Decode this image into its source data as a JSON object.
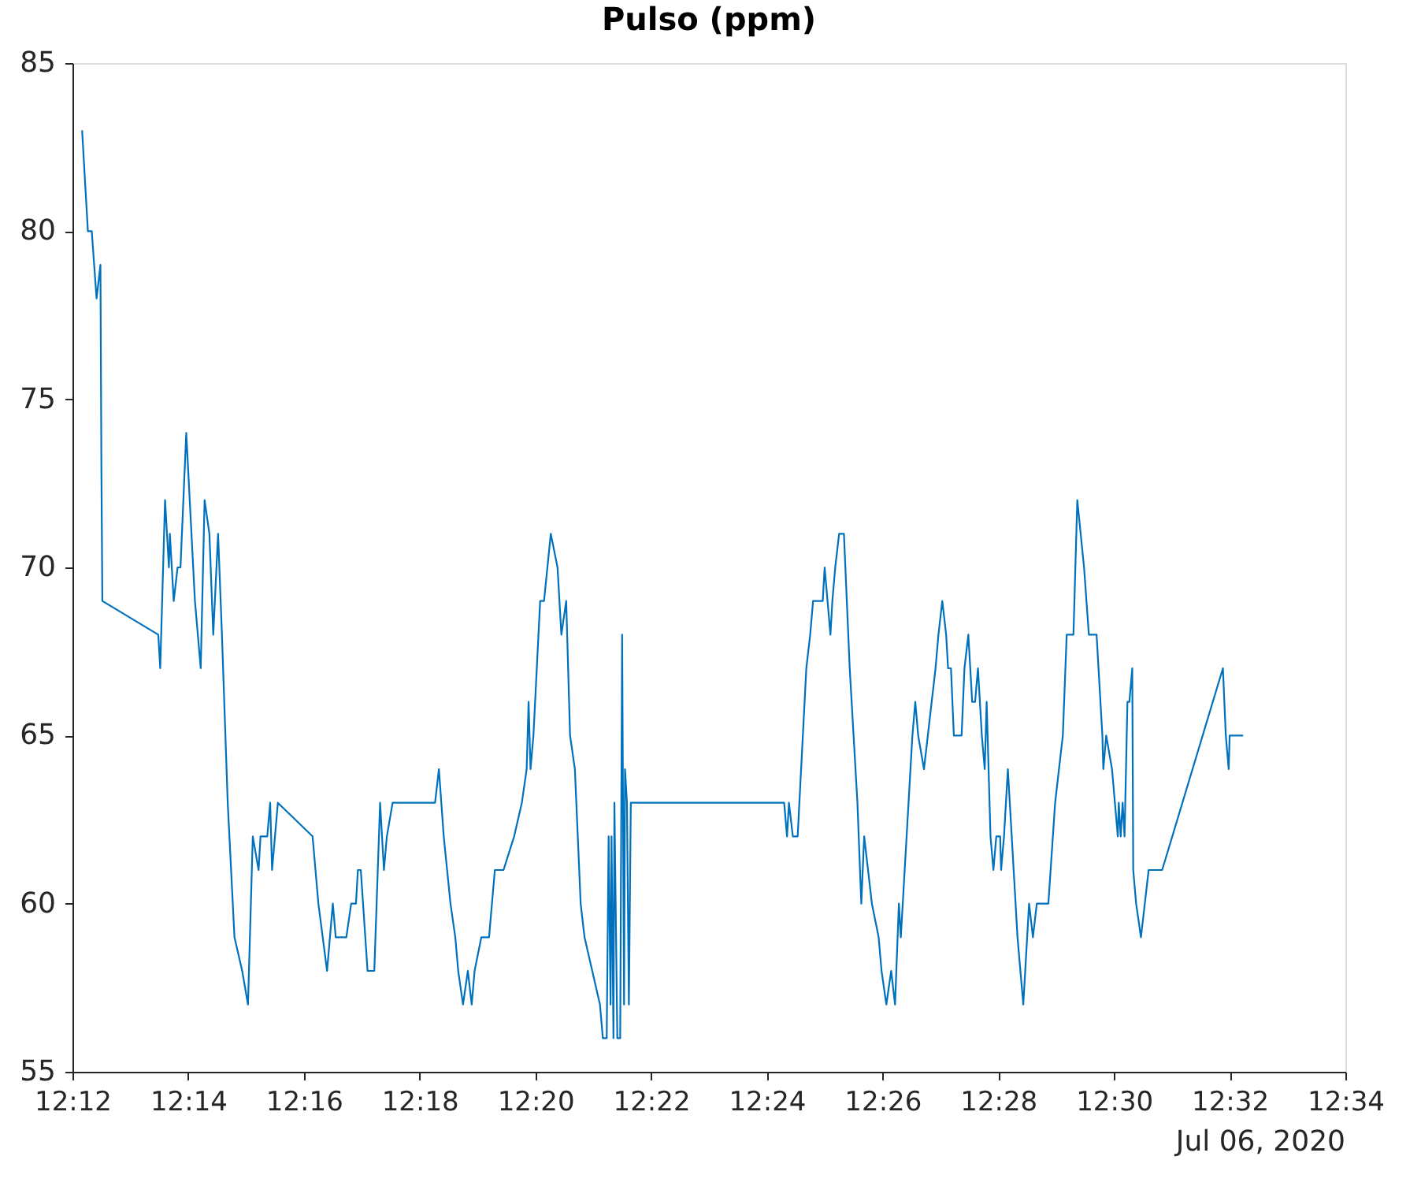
{
  "chart_data": {
    "type": "line",
    "title": "Pulso (ppm)",
    "annotations": [
      "Jul 06, 2020"
    ],
    "xlim": [
      "2020-07-06T12:12",
      "2020-07-06T12:34"
    ],
    "xticks": [
      {
        "value": "2020-07-06T12:12",
        "label": "12:12"
      },
      {
        "value": "2020-07-06T12:14",
        "label": "12:14"
      },
      {
        "value": "2020-07-06T12:16",
        "label": "12:16"
      },
      {
        "value": "2020-07-06T12:18",
        "label": "12:18"
      },
      {
        "value": "2020-07-06T12:20",
        "label": "12:20"
      },
      {
        "value": "2020-07-06T12:22",
        "label": "12:22"
      },
      {
        "value": "2020-07-06T12:24",
        "label": "12:24"
      },
      {
        "value": "2020-07-06T12:26",
        "label": "12:26"
      },
      {
        "value": "2020-07-06T12:28",
        "label": "12:28"
      },
      {
        "value": "2020-07-06T12:30",
        "label": "12:30"
      },
      {
        "value": "2020-07-06T12:32",
        "label": "12:32"
      },
      {
        "value": "2020-07-06T12:34",
        "label": "12:34"
      }
    ],
    "ylim": [
      55,
      85
    ],
    "yticks": [
      55,
      60,
      65,
      70,
      75,
      80,
      85
    ],
    "grid": false,
    "marker": "none",
    "line_style": "solid",
    "series": [
      {
        "color": "#0072bd",
        "x": [
          "2020-07-06T12:12:10",
          "2020-07-06T12:12:16",
          "2020-07-06T12:12:20",
          "2020-07-06T12:12:25",
          "2020-07-06T12:12:29",
          "2020-07-06T12:12:30",
          "2020-07-06T12:12:31",
          "2020-07-06T12:13:29",
          "2020-07-06T12:13:31",
          "2020-07-06T12:13:36",
          "2020-07-06T12:13:40",
          "2020-07-06T12:13:41",
          "2020-07-06T12:13:45",
          "2020-07-06T12:13:49",
          "2020-07-06T12:13:52",
          "2020-07-06T12:13:58",
          "2020-07-06T12:14:07",
          "2020-07-06T12:14:10",
          "2020-07-06T12:14:13",
          "2020-07-06T12:14:17",
          "2020-07-06T12:14:22",
          "2020-07-06T12:14:26",
          "2020-07-06T12:14:31",
          "2020-07-06T12:14:35",
          "2020-07-06T12:14:41",
          "2020-07-06T12:14:48",
          "2020-07-06T12:14:56",
          "2020-07-06T12:15:02",
          "2020-07-06T12:15:07",
          "2020-07-06T12:15:13",
          "2020-07-06T12:15:15",
          "2020-07-06T12:15:22",
          "2020-07-06T12:15:25",
          "2020-07-06T12:15:27",
          "2020-07-06T12:15:33",
          "2020-07-06T12:16:09",
          "2020-07-06T12:16:15",
          "2020-07-06T12:16:24",
          "2020-07-06T12:16:30",
          "2020-07-06T12:16:33",
          "2020-07-06T12:16:44",
          "2020-07-06T12:16:49",
          "2020-07-06T12:16:54",
          "2020-07-06T12:16:56",
          "2020-07-06T12:16:59",
          "2020-07-06T12:17:06",
          "2020-07-06T12:17:13",
          "2020-07-06T12:17:19",
          "2020-07-06T12:17:23",
          "2020-07-06T12:17:26",
          "2020-07-06T12:17:32",
          "2020-07-06T12:18:16",
          "2020-07-06T12:18:20",
          "2020-07-06T12:18:25",
          "2020-07-06T12:18:32",
          "2020-07-06T12:18:37",
          "2020-07-06T12:18:40",
          "2020-07-06T12:18:45",
          "2020-07-06T12:18:50",
          "2020-07-06T12:18:54",
          "2020-07-06T12:18:57",
          "2020-07-06T12:19:04",
          "2020-07-06T12:19:12",
          "2020-07-06T12:19:18",
          "2020-07-06T12:19:27",
          "2020-07-06T12:19:38",
          "2020-07-06T12:19:46",
          "2020-07-06T12:19:51",
          "2020-07-06T12:19:53",
          "2020-07-06T12:19:55",
          "2020-07-06T12:19:58",
          "2020-07-06T12:20:05",
          "2020-07-06T12:20:09",
          "2020-07-06T12:20:16",
          "2020-07-06T12:20:23",
          "2020-07-06T12:20:27",
          "2020-07-06T12:20:32",
          "2020-07-06T12:20:36",
          "2020-07-06T12:20:41",
          "2020-07-06T12:20:47",
          "2020-07-06T12:20:51",
          "2020-07-06T12:21:07",
          "2020-07-06T12:21:10",
          "2020-07-06T12:21:14",
          "2020-07-06T12:21:16",
          "2020-07-06T12:21:18",
          "2020-07-06T12:21:19",
          "2020-07-06T12:21:21",
          "2020-07-06T12:21:22",
          "2020-07-06T12:21:25",
          "2020-07-06T12:21:28",
          "2020-07-06T12:21:30",
          "2020-07-06T12:21:32",
          "2020-07-06T12:21:33",
          "2020-07-06T12:21:35",
          "2020-07-06T12:21:37",
          "2020-07-06T12:21:39",
          "2020-07-06T12:24:18",
          "2020-07-06T12:24:21",
          "2020-07-06T12:24:23",
          "2020-07-06T12:24:27",
          "2020-07-06T12:24:32",
          "2020-07-06T12:24:41",
          "2020-07-06T12:24:45",
          "2020-07-06T12:24:48",
          "2020-07-06T12:24:58",
          "2020-07-06T12:25:00",
          "2020-07-06T12:25:03",
          "2020-07-06T12:25:06",
          "2020-07-06T12:25:08",
          "2020-07-06T12:25:11",
          "2020-07-06T12:25:15",
          "2020-07-06T12:25:20",
          "2020-07-06T12:25:26",
          "2020-07-06T12:25:34",
          "2020-07-06T12:25:38",
          "2020-07-06T12:25:41",
          "2020-07-06T12:25:45",
          "2020-07-06T12:25:49",
          "2020-07-06T12:25:56",
          "2020-07-06T12:25:59",
          "2020-07-06T12:26:04",
          "2020-07-06T12:26:09",
          "2020-07-06T12:26:13",
          "2020-07-06T12:26:17",
          "2020-07-06T12:26:19",
          "2020-07-06T12:26:23",
          "2020-07-06T12:26:27",
          "2020-07-06T12:26:31",
          "2020-07-06T12:26:34",
          "2020-07-06T12:26:37",
          "2020-07-06T12:26:43",
          "2020-07-06T12:26:51",
          "2020-07-06T12:26:55",
          "2020-07-06T12:26:58",
          "2020-07-06T12:27:02",
          "2020-07-06T12:27:06",
          "2020-07-06T12:27:08",
          "2020-07-06T12:27:11",
          "2020-07-06T12:27:14",
          "2020-07-06T12:27:22",
          "2020-07-06T12:27:25",
          "2020-07-06T12:27:29",
          "2020-07-06T12:27:33",
          "2020-07-06T12:27:36",
          "2020-07-06T12:27:39",
          "2020-07-06T12:27:43",
          "2020-07-06T12:27:46",
          "2020-07-06T12:27:48",
          "2020-07-06T12:27:52",
          "2020-07-06T12:27:55",
          "2020-07-06T12:27:58",
          "2020-07-06T12:28:02",
          "2020-07-06T12:28:03",
          "2020-07-06T12:28:06",
          "2020-07-06T12:28:10",
          "2020-07-06T12:28:14",
          "2020-07-06T12:28:20",
          "2020-07-06T12:28:26",
          "2020-07-06T12:28:32",
          "2020-07-06T12:28:36",
          "2020-07-06T12:28:40",
          "2020-07-06T12:28:52",
          "2020-07-06T12:28:59",
          "2020-07-06T12:29:07",
          "2020-07-06T12:29:11",
          "2020-07-06T12:29:18",
          "2020-07-06T12:29:22",
          "2020-07-06T12:29:29",
          "2020-07-06T12:29:34",
          "2020-07-06T12:29:42",
          "2020-07-06T12:29:48",
          "2020-07-06T12:29:49",
          "2020-07-06T12:29:52",
          "2020-07-06T12:29:58",
          "2020-07-06T12:30:04",
          "2020-07-06T12:30:05",
          "2020-07-06T12:30:07",
          "2020-07-06T12:30:09",
          "2020-07-06T12:30:11",
          "2020-07-06T12:30:14",
          "2020-07-06T12:30:16",
          "2020-07-06T12:30:19",
          "2020-07-06T12:30:20",
          "2020-07-06T12:30:23",
          "2020-07-06T12:30:28",
          "2020-07-06T12:30:36",
          "2020-07-06T12:30:50",
          "2020-07-06T12:31:53",
          "2020-07-06T12:31:56",
          "2020-07-06T12:31:59",
          "2020-07-06T12:32:00",
          "2020-07-06T12:32:14"
        ],
        "values": [
          83,
          80,
          80,
          78,
          79,
          73,
          69,
          68,
          67,
          72,
          70,
          71,
          69,
          70,
          70,
          74,
          69,
          68,
          67,
          72,
          71,
          68,
          71,
          68,
          63,
          59,
          58,
          57,
          62,
          61,
          62,
          62,
          63,
          61,
          63,
          62,
          60,
          58,
          60,
          59,
          59,
          60,
          60,
          61,
          61,
          58,
          58,
          63,
          61,
          62,
          63,
          63,
          64,
          62,
          60,
          59,
          58,
          57,
          58,
          57,
          58,
          59,
          59,
          61,
          61,
          62,
          63,
          64,
          66,
          64,
          65,
          69,
          69,
          71,
          70,
          68,
          69,
          65,
          64,
          60,
          59,
          57,
          56,
          56,
          62,
          57,
          62,
          56,
          63,
          56,
          56,
          68,
          57,
          64,
          63,
          57,
          63,
          63,
          62,
          63,
          62,
          62,
          67,
          68,
          69,
          69,
          70,
          69,
          68,
          69,
          70,
          71,
          71,
          67,
          63,
          60,
          62,
          61,
          60,
          59,
          58,
          57,
          58,
          57,
          60,
          59,
          61,
          63,
          65,
          66,
          65,
          64,
          66,
          67,
          68,
          69,
          68,
          67,
          67,
          65,
          65,
          67,
          68,
          66,
          66,
          67,
          65,
          64,
          66,
          62,
          61,
          62,
          62,
          61,
          62,
          64,
          62,
          59,
          57,
          60,
          59,
          60,
          60,
          63,
          65,
          68,
          68,
          72,
          70,
          68,
          68,
          65,
          64,
          65,
          64,
          62,
          63,
          62,
          63,
          62,
          66,
          66,
          67,
          61,
          60,
          59,
          61,
          61,
          67,
          65,
          64,
          65,
          65
        ]
      }
    ]
  }
}
